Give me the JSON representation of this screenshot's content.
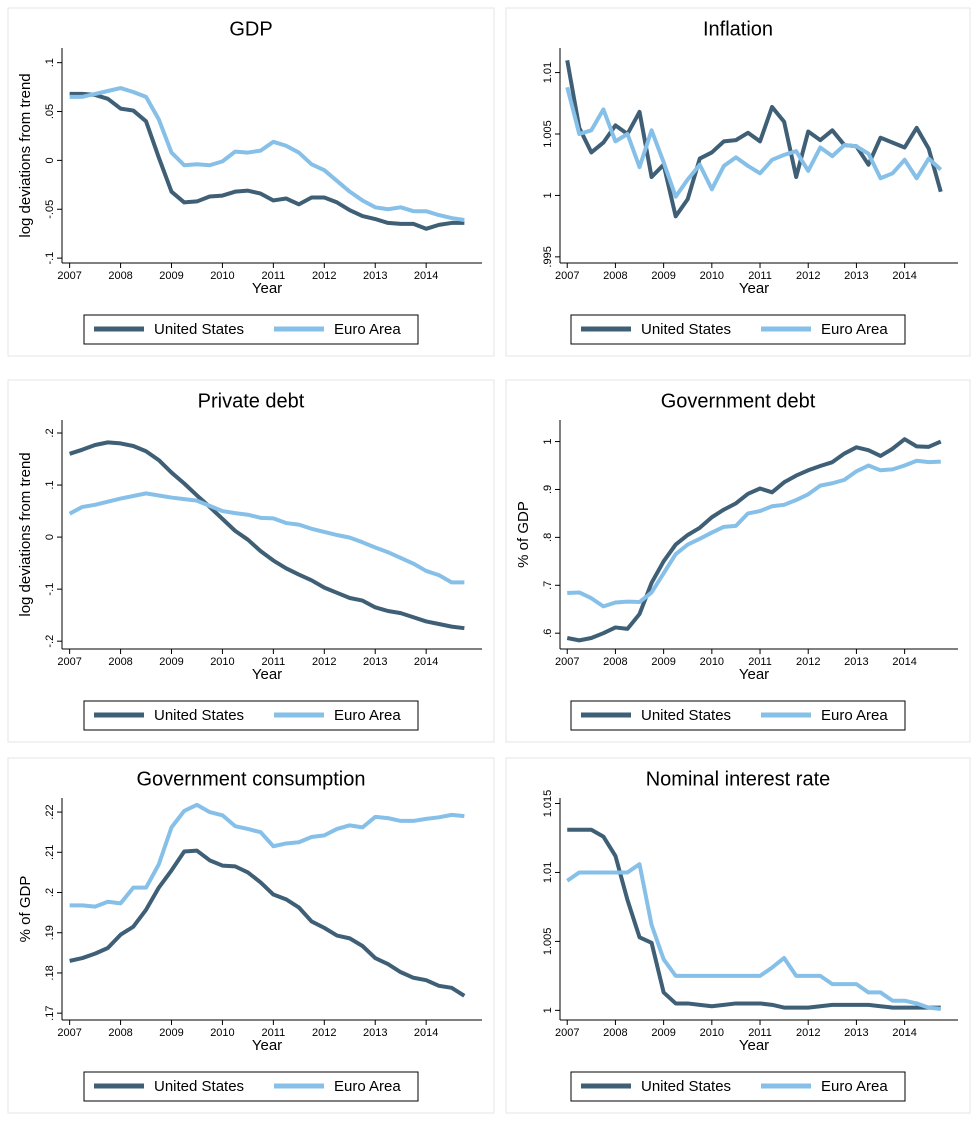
{
  "chart_data": [
    {
      "type": "line",
      "title": "GDP",
      "xlabel": "Year",
      "ylabel": "log deviations from trend",
      "x": [
        2007,
        2007.25,
        2007.5,
        2007.75,
        2008,
        2008.25,
        2008.5,
        2008.75,
        2009,
        2009.25,
        2009.5,
        2009.75,
        2010,
        2010.25,
        2010.5,
        2010.75,
        2011,
        2011.25,
        2011.5,
        2011.75,
        2012,
        2012.25,
        2012.5,
        2012.75,
        2013,
        2013.25,
        2013.5,
        2013.75,
        2014,
        2014.25,
        2014.5,
        2014.75
      ],
      "xlim": [
        2006.85,
        2014.9
      ],
      "xticks": [
        2007,
        2008,
        2009,
        2010,
        2011,
        2012,
        2013,
        2014
      ],
      "ylim": [
        -0.105,
        0.115
      ],
      "yticks": [
        {
          "value": -0.1,
          "label": "-.1"
        },
        {
          "value": -0.05,
          "label": "-.05"
        },
        0,
        {
          "value": 0.05,
          "label": ".05"
        },
        {
          "value": 0.1,
          "label": ".1"
        }
      ],
      "series": [
        {
          "name": "United States",
          "color": "#3e5f75",
          "values": [
            0.068,
            0.068,
            0.067,
            0.063,
            0.053,
            0.051,
            0.04,
            0.003,
            -0.032,
            -0.043,
            -0.042,
            -0.037,
            -0.036,
            -0.032,
            -0.031,
            -0.034,
            -0.041,
            -0.039,
            -0.045,
            -0.038,
            -0.038,
            -0.043,
            -0.051,
            -0.057,
            -0.06,
            -0.064,
            -0.065,
            -0.065,
            -0.07,
            -0.066,
            -0.064,
            -0.064
          ]
        },
        {
          "name": "Euro Area",
          "color": "#86c0e8",
          "values": [
            0.065,
            0.065,
            0.068,
            0.071,
            0.074,
            0.07,
            0.065,
            0.042,
            0.008,
            -0.005,
            -0.004,
            -0.005,
            -0.001,
            0.009,
            0.008,
            0.01,
            0.019,
            0.015,
            0.008,
            -0.004,
            -0.01,
            -0.021,
            -0.032,
            -0.041,
            -0.048,
            -0.05,
            -0.048,
            -0.052,
            -0.052,
            -0.056,
            -0.059,
            -0.061
          ]
        }
      ]
    },
    {
      "type": "line",
      "title": "Inflation",
      "xlabel": "Year",
      "x": [
        2007,
        2007.25,
        2007.5,
        2007.75,
        2008,
        2008.25,
        2008.5,
        2008.75,
        2009,
        2009.25,
        2009.5,
        2009.75,
        2010,
        2010.25,
        2010.5,
        2010.75,
        2011,
        2011.25,
        2011.5,
        2011.75,
        2012,
        2012.25,
        2012.5,
        2012.75,
        2013,
        2013.25,
        2013.5,
        2013.75,
        2014,
        2014.25,
        2014.5,
        2014.75
      ],
      "xlim": [
        2006.85,
        2014.9
      ],
      "xticks": [
        2007,
        2008,
        2009,
        2010,
        2011,
        2012,
        2013,
        2014
      ],
      "ylim": [
        0.9945,
        1.012
      ],
      "yticks": [
        {
          "value": 0.995,
          "label": ".995"
        },
        1,
        1.005,
        1.01
      ],
      "series": [
        {
          "name": "United States",
          "color": "#3e5f75",
          "values": [
            1.011,
            1.0055,
            1.0035,
            1.0043,
            1.0057,
            1.005,
            1.0068,
            1.0015,
            1.0025,
            0.9983,
            0.9997,
            1.003,
            1.0035,
            1.0044,
            1.0045,
            1.0051,
            1.0044,
            1.0072,
            1.006,
            1.0015,
            1.0052,
            1.0045,
            1.0053,
            1.0041,
            1.004,
            1.0025,
            1.0047,
            1.0043,
            1.0039,
            1.0055,
            1.0038,
            1.0003
          ]
        },
        {
          "name": "Euro Area",
          "color": "#86c0e8",
          "values": [
            1.0088,
            1.005,
            1.0053,
            1.007,
            1.0044,
            1.005,
            1.0023,
            1.0053,
            1.0027,
            0.9999,
            1.0013,
            1.0025,
            1.0005,
            1.0024,
            1.0031,
            1.0024,
            1.0018,
            1.0029,
            1.0033,
            1.0036,
            1.002,
            1.0039,
            1.0032,
            1.0041,
            1.004,
            1.0034,
            1.0014,
            1.0018,
            1.0029,
            1.0014,
            1.003,
            1.0021
          ]
        }
      ]
    },
    {
      "type": "line",
      "title": "Private debt",
      "xlabel": "Year",
      "ylabel": "log deviations from trend",
      "x": [
        2007,
        2007.25,
        2007.5,
        2007.75,
        2008,
        2008.25,
        2008.5,
        2008.75,
        2009,
        2009.25,
        2009.5,
        2009.75,
        2010,
        2010.25,
        2010.5,
        2010.75,
        2011,
        2011.25,
        2011.5,
        2011.75,
        2012,
        2012.25,
        2012.5,
        2012.75,
        2013,
        2013.25,
        2013.5,
        2013.75,
        2014,
        2014.25,
        2014.5,
        2014.75
      ],
      "xlim": [
        2006.85,
        2014.9
      ],
      "xticks": [
        2007,
        2008,
        2009,
        2010,
        2011,
        2012,
        2013,
        2014
      ],
      "ylim": [
        -0.215,
        0.225
      ],
      "yticks": [
        {
          "value": -0.2,
          "label": "-.2"
        },
        {
          "value": -0.1,
          "label": "-.1"
        },
        0,
        {
          "value": 0.1,
          "label": ".1"
        },
        {
          "value": 0.2,
          "label": ".2"
        }
      ],
      "series": [
        {
          "name": "United States",
          "color": "#3e5f75",
          "values": [
            0.16,
            0.168,
            0.177,
            0.182,
            0.18,
            0.175,
            0.165,
            0.148,
            0.124,
            0.103,
            0.08,
            0.058,
            0.035,
            0.012,
            -0.005,
            -0.027,
            -0.045,
            -0.06,
            -0.072,
            -0.083,
            -0.097,
            -0.107,
            -0.117,
            -0.122,
            -0.135,
            -0.142,
            -0.146,
            -0.154,
            -0.162,
            -0.167,
            -0.172,
            -0.175
          ]
        },
        {
          "name": "Euro Area",
          "color": "#86c0e8",
          "values": [
            0.045,
            0.058,
            0.062,
            0.068,
            0.074,
            0.079,
            0.084,
            0.08,
            0.076,
            0.073,
            0.07,
            0.06,
            0.05,
            0.046,
            0.043,
            0.037,
            0.036,
            0.027,
            0.024,
            0.016,
            0.01,
            0.004,
            -0.001,
            -0.01,
            -0.02,
            -0.029,
            -0.04,
            -0.051,
            -0.065,
            -0.073,
            -0.087,
            -0.087
          ]
        }
      ]
    },
    {
      "type": "line",
      "title": "Government debt",
      "xlabel": "Year",
      "ylabel": "% of GDP",
      "x": [
        2007,
        2007.25,
        2007.5,
        2007.75,
        2008,
        2008.25,
        2008.5,
        2008.75,
        2009,
        2009.25,
        2009.5,
        2009.75,
        2010,
        2010.25,
        2010.5,
        2010.75,
        2011,
        2011.25,
        2011.5,
        2011.75,
        2012,
        2012.25,
        2012.5,
        2012.75,
        2013,
        2013.25,
        2013.5,
        2013.75,
        2014,
        2014.25,
        2014.5,
        2014.75
      ],
      "xlim": [
        2006.85,
        2014.9
      ],
      "xticks": [
        2007,
        2008,
        2009,
        2010,
        2011,
        2012,
        2013,
        2014
      ],
      "ylim": [
        0.567,
        1.045
      ],
      "yticks": [
        {
          "value": 0.6,
          "label": ".6"
        },
        {
          "value": 0.7,
          "label": ".7"
        },
        {
          "value": 0.8,
          "label": ".8"
        },
        {
          "value": 0.9,
          "label": ".9"
        },
        1
      ],
      "series": [
        {
          "name": "United States",
          "color": "#3e5f75",
          "values": [
            0.59,
            0.585,
            0.59,
            0.6,
            0.612,
            0.609,
            0.64,
            0.705,
            0.75,
            0.785,
            0.805,
            0.82,
            0.842,
            0.858,
            0.871,
            0.891,
            0.902,
            0.894,
            0.915,
            0.929,
            0.94,
            0.949,
            0.957,
            0.975,
            0.988,
            0.982,
            0.97,
            0.985,
            1.005,
            0.99,
            0.989,
            1.0
          ]
        },
        {
          "name": "Euro Area",
          "color": "#86c0e8",
          "values": [
            0.684,
            0.685,
            0.673,
            0.656,
            0.664,
            0.666,
            0.665,
            0.685,
            0.725,
            0.765,
            0.785,
            0.797,
            0.81,
            0.822,
            0.824,
            0.85,
            0.855,
            0.865,
            0.868,
            0.878,
            0.89,
            0.908,
            0.913,
            0.92,
            0.938,
            0.95,
            0.94,
            0.942,
            0.95,
            0.96,
            0.957,
            0.958
          ]
        }
      ]
    },
    {
      "type": "line",
      "title": "Government consumption",
      "xlabel": "Year",
      "ylabel": "% of GDP",
      "x": [
        2007,
        2007.25,
        2007.5,
        2007.75,
        2008,
        2008.25,
        2008.5,
        2008.75,
        2009,
        2009.25,
        2009.5,
        2009.75,
        2010,
        2010.25,
        2010.5,
        2010.75,
        2011,
        2011.25,
        2011.5,
        2011.75,
        2012,
        2012.25,
        2012.5,
        2012.75,
        2013,
        2013.25,
        2013.5,
        2013.75,
        2014,
        2014.25,
        2014.5,
        2014.75
      ],
      "xlim": [
        2006.85,
        2014.9
      ],
      "xticks": [
        2007,
        2008,
        2009,
        2010,
        2011,
        2012,
        2013,
        2014
      ],
      "ylim": [
        0.1683,
        0.2235
      ],
      "yticks": [
        {
          "value": 0.17,
          "label": ".17"
        },
        {
          "value": 0.18,
          "label": ".18"
        },
        {
          "value": 0.19,
          "label": ".19"
        },
        {
          "value": 0.2,
          "label": ".2"
        },
        {
          "value": 0.21,
          "label": ".21"
        },
        {
          "value": 0.22,
          "label": ".22"
        }
      ],
      "series": [
        {
          "name": "United States",
          "color": "#3e5f75",
          "values": [
            0.183,
            0.1837,
            0.1848,
            0.1862,
            0.1895,
            0.1915,
            0.1957,
            0.2012,
            0.2055,
            0.2102,
            0.2104,
            0.208,
            0.2067,
            0.2065,
            0.205,
            0.2025,
            0.1995,
            0.1983,
            0.1963,
            0.1928,
            0.1912,
            0.1893,
            0.1886,
            0.1867,
            0.1837,
            0.1822,
            0.1802,
            0.1788,
            0.1782,
            0.1768,
            0.1763,
            0.1743
          ]
        },
        {
          "name": "Euro Area",
          "color": "#86c0e8",
          "values": [
            0.1968,
            0.1968,
            0.1965,
            0.1977,
            0.1973,
            0.2012,
            0.2012,
            0.207,
            0.2162,
            0.2203,
            0.2218,
            0.22,
            0.2192,
            0.2165,
            0.2158,
            0.215,
            0.2115,
            0.2122,
            0.2125,
            0.2138,
            0.2142,
            0.2158,
            0.2167,
            0.2162,
            0.2188,
            0.2185,
            0.2178,
            0.2178,
            0.2183,
            0.2187,
            0.2193,
            0.219
          ]
        }
      ]
    },
    {
      "type": "line",
      "title": "Nominal interest rate",
      "xlabel": "Year",
      "x": [
        2007,
        2007.25,
        2007.5,
        2007.75,
        2008,
        2008.25,
        2008.5,
        2008.75,
        2009,
        2009.25,
        2009.5,
        2009.75,
        2010,
        2010.25,
        2010.5,
        2010.75,
        2011,
        2011.25,
        2011.5,
        2011.75,
        2012,
        2012.25,
        2012.5,
        2012.75,
        2013,
        2013.25,
        2013.5,
        2013.75,
        2014,
        2014.25,
        2014.5,
        2014.75
      ],
      "xlim": [
        2006.85,
        2014.9
      ],
      "xticks": [
        2007,
        2008,
        2009,
        2010,
        2011,
        2012,
        2013,
        2014
      ],
      "ylim": [
        0.9993,
        1.0154
      ],
      "yticks": [
        1,
        1.005,
        1.01,
        1.015
      ],
      "series": [
        {
          "name": "United States",
          "color": "#3e5f75",
          "values": [
            1.0131,
            1.0131,
            1.0131,
            1.0126,
            1.0112,
            1.008,
            1.0053,
            1.0049,
            1.0013,
            1.0005,
            1.0005,
            1.0004,
            1.0003,
            1.0004,
            1.0005,
            1.0005,
            1.0005,
            1.0004,
            1.0002,
            1.0002,
            1.0002,
            1.0003,
            1.0004,
            1.0004,
            1.0004,
            1.0004,
            1.0003,
            1.0002,
            1.0002,
            1.0002,
            1.0002,
            1.0002
          ]
        },
        {
          "name": "Euro Area",
          "color": "#86c0e8",
          "values": [
            1.0094,
            1.01,
            1.01,
            1.01,
            1.01,
            1.01,
            1.0106,
            1.0062,
            1.0037,
            1.0025,
            1.0025,
            1.0025,
            1.0025,
            1.0025,
            1.0025,
            1.0025,
            1.0025,
            1.0031,
            1.0038,
            1.0025,
            1.0025,
            1.0025,
            1.0019,
            1.0019,
            1.0019,
            1.0013,
            1.0013,
            1.0007,
            1.0007,
            1.0005,
            1.0002,
            1.0001
          ]
        }
      ]
    }
  ]
}
